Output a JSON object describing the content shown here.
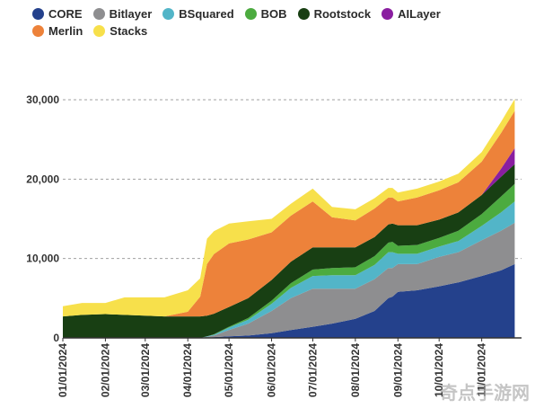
{
  "chart_data": {
    "type": "area",
    "stacked": true,
    "title": "",
    "xlabel": "",
    "ylabel": "",
    "ylim": [
      0,
      30000
    ],
    "y_ticks": [
      0,
      10000,
      20000,
      30000
    ],
    "y_tick_labels": [
      "0",
      "10,000",
      "20,000",
      "30,000"
    ],
    "x_ticks": [
      "01/01/2024",
      "02/01/2024",
      "03/01/2024",
      "04/01/2024",
      "05/01/2024",
      "06/01/2024",
      "07/01/2024",
      "08/01/2024",
      "09/01/2024",
      "10/01/2024",
      "11/01/2024"
    ],
    "x": [
      "2024-01-01",
      "2024-01-15",
      "2024-02-01",
      "2024-02-15",
      "2024-03-01",
      "2024-03-15",
      "2024-04-01",
      "2024-04-10",
      "2024-04-15",
      "2024-04-20",
      "2024-05-01",
      "2024-05-15",
      "2024-06-01",
      "2024-06-15",
      "2024-07-01",
      "2024-07-15",
      "2024-08-01",
      "2024-08-15",
      "2024-08-25",
      "2024-08-28",
      "2024-09-01",
      "2024-09-15",
      "2024-10-01",
      "2024-10-15",
      "2024-11-01",
      "2024-11-15",
      "2024-11-25"
    ],
    "series": [
      {
        "name": "CORE",
        "color": "#24418c",
        "values": [
          0,
          0,
          0,
          0,
          0,
          0,
          0,
          0,
          50,
          100,
          200,
          300,
          600,
          1000,
          1400,
          1800,
          2400,
          3400,
          5000,
          5200,
          5800,
          6000,
          6500,
          7000,
          7800,
          8500,
          9300
        ]
      },
      {
        "name": "Bitlayer",
        "color": "#8e8e90",
        "values": [
          0,
          0,
          0,
          0,
          0,
          0,
          0,
          0,
          100,
          200,
          800,
          1500,
          2800,
          4000,
          4800,
          4400,
          3800,
          4000,
          3800,
          3600,
          3500,
          3300,
          3700,
          3800,
          4500,
          5000,
          5200
        ]
      },
      {
        "name": "BSquared",
        "color": "#52b5c8",
        "values": [
          0,
          0,
          0,
          0,
          0,
          0,
          0,
          0,
          50,
          100,
          300,
          500,
          900,
          1300,
          1600,
          1700,
          1700,
          1800,
          2000,
          2000,
          1300,
          1300,
          1300,
          1400,
          1800,
          2300,
          2700
        ]
      },
      {
        "name": "BOB",
        "color": "#4cab3f",
        "values": [
          0,
          0,
          0,
          0,
          0,
          0,
          0,
          0,
          0,
          50,
          100,
          200,
          400,
          600,
          800,
          900,
          1000,
          1100,
          1200,
          1300,
          1000,
          1100,
          1100,
          1300,
          1500,
          2000,
          2200
        ]
      },
      {
        "name": "Rootstock",
        "color": "#183f13",
        "values": [
          2700,
          2900,
          3000,
          2900,
          2800,
          2700,
          2700,
          2700,
          2600,
          2600,
          2500,
          2500,
          2600,
          2700,
          2800,
          2600,
          2500,
          2400,
          2300,
          2300,
          2600,
          2500,
          2300,
          2300,
          2400,
          2500,
          2500
        ]
      },
      {
        "name": "AILayer",
        "color": "#8a1ea0",
        "values": [
          0,
          0,
          0,
          0,
          0,
          0,
          0,
          0,
          0,
          0,
          0,
          0,
          0,
          0,
          0,
          0,
          0,
          0,
          0,
          0,
          0,
          0,
          0,
          0,
          0,
          1000,
          2000
        ]
      },
      {
        "name": "Merlin",
        "color": "#ed823a",
        "values": [
          0,
          0,
          0,
          0,
          0,
          0,
          600,
          2500,
          6500,
          7500,
          8000,
          7400,
          6000,
          5800,
          5800,
          3800,
          3400,
          3600,
          3400,
          3300,
          3000,
          3500,
          3700,
          3800,
          4200,
          4500,
          4700
        ]
      },
      {
        "name": "Stacks",
        "color": "#f7e04b",
        "values": [
          1300,
          1500,
          1400,
          2200,
          2300,
          2400,
          2700,
          2300,
          3200,
          2900,
          2500,
          2300,
          1700,
          1500,
          1600,
          1300,
          1400,
          1300,
          1200,
          1200,
          1100,
          1100,
          1100,
          1100,
          1200,
          1400,
          1500
        ]
      }
    ]
  },
  "watermark": "奇点手游网"
}
